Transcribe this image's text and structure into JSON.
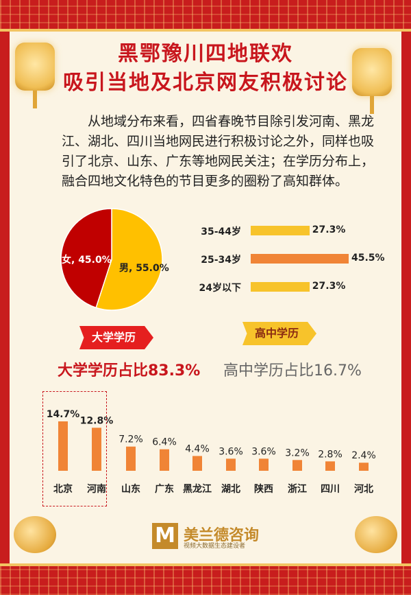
{
  "title_line1": "黑鄂豫川四地联欢",
  "title_line2": "吸引当地及北京网友积极讨论",
  "intro": "从地域分布来看，四省春晚节目除引发河南、黑龙江、湖北、四川当地网民进行积极讨论之外，同样也吸引了北京、山东、广东等地网民关注；在学历分布上，融合四地文化特色的节目更多的圈粉了高知群体。",
  "education": {
    "uni_tag": "大学学历",
    "hs_tag": "高中学历",
    "uni_ratio": "大学学历占比83.3%",
    "hs_ratio": "高中学历占比16.7%"
  },
  "logo": {
    "mark": "M",
    "name": "美兰德咨询",
    "sub": "视频大数据生态建设者"
  },
  "colors": {
    "red": "#c8161d",
    "female": "#c00000",
    "male": "#ffc000",
    "bar_orange": "#f08436",
    "bar_yellow": "#f7c32b"
  },
  "chart_data": [
    {
      "type": "pie",
      "slices": [
        {
          "label": "男",
          "value": 55.0,
          "text": "男, 55.0%"
        },
        {
          "label": "女",
          "value": 45.0,
          "text": "女, 45.0%"
        }
      ]
    },
    {
      "type": "bar",
      "orientation": "horizontal",
      "categories": [
        "35-44岁",
        "25-34岁",
        "24岁以下"
      ],
      "values": [
        27.3,
        45.5,
        27.3
      ],
      "value_labels": [
        "27.3%",
        "45.5%",
        "27.3%"
      ]
    },
    {
      "type": "bar",
      "categories": [
        "北京",
        "河南",
        "山东",
        "广东",
        "黑龙江",
        "湖北",
        "陕西",
        "浙江",
        "四川",
        "河北"
      ],
      "values": [
        14.7,
        12.8,
        7.2,
        6.4,
        4.4,
        3.6,
        3.6,
        3.2,
        2.8,
        2.4
      ],
      "value_labels": [
        "14.7%",
        "12.8%",
        "7.2%",
        "6.4%",
        "4.4%",
        "3.6%",
        "3.6%",
        "3.2%",
        "2.8%",
        "2.4%"
      ]
    }
  ]
}
